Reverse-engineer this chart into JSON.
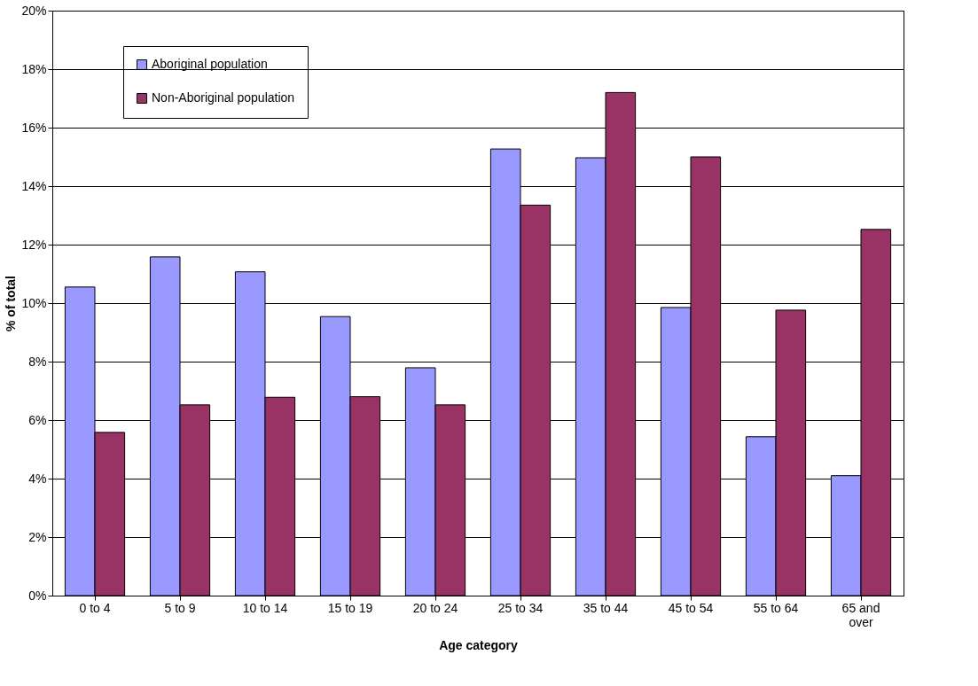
{
  "chart_data": {
    "type": "bar",
    "xlabel": "Age category",
    "ylabel": "% of total",
    "categories": [
      "0 to 4",
      "5 to 9",
      "10 to 14",
      "15 to 19",
      "20 to 24",
      "25 to 34",
      "35 to 44",
      "45 to 54",
      "55 to 64",
      "65 and over"
    ],
    "series": [
      {
        "name": "Aboriginal population",
        "color": "#9999ff",
        "values": [
          10.55,
          11.58,
          11.07,
          9.54,
          7.79,
          15.27,
          14.97,
          9.85,
          5.43,
          4.1
        ]
      },
      {
        "name": "Non-Aboriginal population",
        "color": "#993366",
        "values": [
          5.58,
          6.52,
          6.78,
          6.8,
          6.52,
          13.35,
          17.2,
          15.0,
          9.76,
          12.52
        ]
      }
    ],
    "ylim": [
      0,
      20
    ],
    "yticks": [
      {
        "value": 0,
        "label": "0%"
      },
      {
        "value": 2,
        "label": "2%"
      },
      {
        "value": 4,
        "label": "4%"
      },
      {
        "value": 6,
        "label": "6%"
      },
      {
        "value": 8,
        "label": "8%"
      },
      {
        "value": 10,
        "label": "10%"
      },
      {
        "value": 12,
        "label": "12%"
      },
      {
        "value": 14,
        "label": "14%"
      },
      {
        "value": 16,
        "label": "16%"
      },
      {
        "value": 18,
        "label": "18%"
      },
      {
        "value": 20,
        "label": "20%"
      }
    ],
    "grid": "y",
    "legend": "top left"
  }
}
